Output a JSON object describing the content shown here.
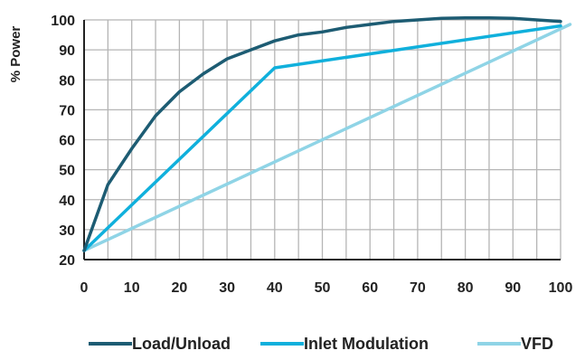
{
  "chart_data": {
    "type": "line",
    "title": "",
    "xlabel": "",
    "ylabel": "% Power",
    "xlim": [
      0,
      100
    ],
    "ylim": [
      20,
      100
    ],
    "x_ticks": [
      "0",
      "10",
      "20",
      "30",
      "40",
      "50",
      "60",
      "70",
      "80",
      "90",
      "100"
    ],
    "y_ticks": [
      "20",
      "30",
      "40",
      "50",
      "60",
      "70",
      "80",
      "90",
      "100"
    ],
    "grid": true,
    "legend_position": "bottom",
    "series": [
      {
        "name": "Load/Unload",
        "color": "#1d5c73",
        "points": [
          [
            0,
            23
          ],
          [
            5,
            45
          ],
          [
            10,
            57
          ],
          [
            15,
            68
          ],
          [
            20,
            76
          ],
          [
            25,
            82
          ],
          [
            30,
            87
          ],
          [
            35,
            90
          ],
          [
            40,
            93
          ],
          [
            45,
            95
          ],
          [
            50,
            96
          ],
          [
            55,
            97.5
          ],
          [
            60,
            98.5
          ],
          [
            65,
            99.5
          ],
          [
            70,
            100
          ],
          [
            75,
            100.5
          ],
          [
            80,
            100.7
          ],
          [
            85,
            100.7
          ],
          [
            90,
            100.5
          ],
          [
            95,
            100
          ],
          [
            100,
            99.5
          ]
        ]
      },
      {
        "name": "Inlet Modulation",
        "color": "#10b0dc",
        "points": [
          [
            0,
            23
          ],
          [
            40,
            84
          ],
          [
            100,
            98
          ]
        ]
      },
      {
        "name": "VFD",
        "color": "#8fd4e6",
        "points": [
          [
            0,
            23
          ],
          [
            102,
            98.5
          ]
        ]
      }
    ]
  }
}
